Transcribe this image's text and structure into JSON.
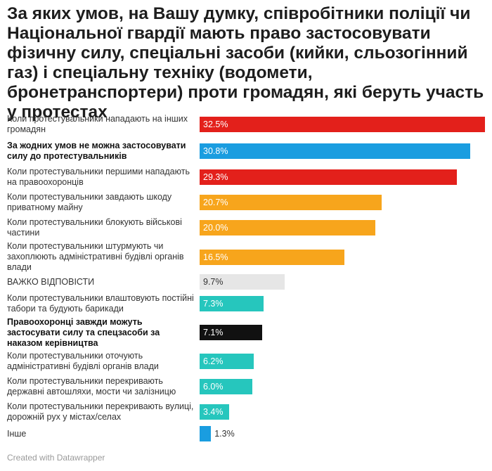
{
  "title": "За яких умов, на Вашу думку, співробітники поліції чи Національної гвардії мають право застосовувати фізичну силу, спеціальні засоби (кийки, сльозогінний газ) і спеціальну техніку (водомети, бронетранспортери) проти громадян, які беруть участь у протестах",
  "footer": "Created with Datawrapper",
  "chart_data": {
    "type": "bar",
    "orientation": "horizontal",
    "xlim": [
      0,
      32.5
    ],
    "value_suffix": "%",
    "categories": [
      "Коли протестувальники нападають на інших громадян",
      "За жодних умов не можна застосовувати силу до протестувальників",
      "Коли протестувальники першими нападають на правоохоронців",
      "Коли протестувальники завдають шкоду приватному майну",
      "Коли протестувальники блокують військові частини",
      "Коли протестувальники штурмують чи захоплюють адміністративні будівлі органів влади",
      "ВАЖКО ВІДПОВІСТИ",
      "Коли протестувальники влаштовують постійні табори та будують барикади",
      "Правоохоронці завжди можуть застосувати силу та спецзасоби за наказом керівництва",
      "Коли протестувальники оточують адміністративні будівлі органів влади",
      "Коли протестувальники перекривають державні автошляхи, мости чи залізницю",
      "Коли протестувальники перекривають вулиці, дорожній рух у містах/селах",
      "Інше"
    ],
    "values": [
      32.5,
      30.8,
      29.3,
      20.7,
      20.0,
      16.5,
      9.7,
      7.3,
      7.1,
      6.2,
      6.0,
      3.4,
      1.3
    ],
    "value_labels": [
      "32.5%",
      "30.8%",
      "29.3%",
      "20.7%",
      "20.0%",
      "16.5%",
      "9.7%",
      "7.3%",
      "7.1%",
      "6.2%",
      "6.0%",
      "3.4%",
      "1.3%"
    ],
    "colors": [
      "#e3201b",
      "#1a9de0",
      "#e3201b",
      "#f7a51c",
      "#f7a51c",
      "#f7a51c",
      "#e6e6e6",
      "#26c6bd",
      "#111111",
      "#26c6bd",
      "#26c6bd",
      "#26c6bd",
      "#1a9de0"
    ],
    "bold_rows": [
      1,
      8
    ]
  }
}
